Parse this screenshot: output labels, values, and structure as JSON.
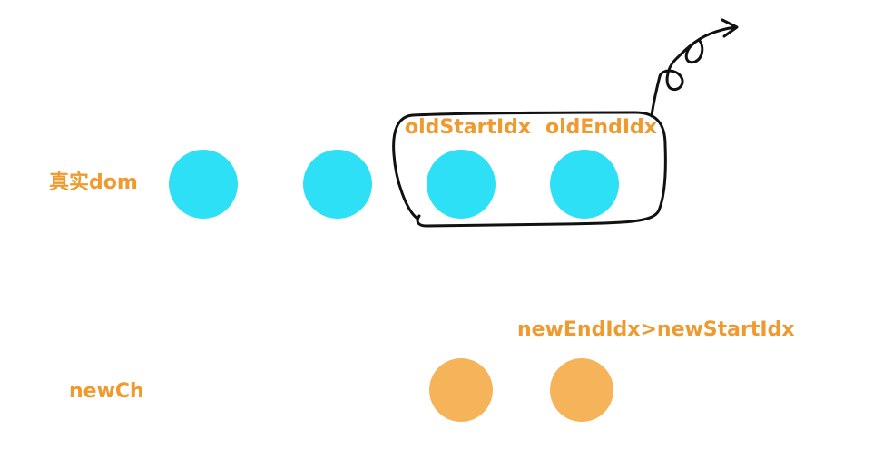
{
  "rows": {
    "real_dom": {
      "label": "真实dom",
      "node_color": "#2ee0f5",
      "node_count": 4
    },
    "new_ch": {
      "label": "newCh",
      "node_color": "#f5b45a",
      "node_count": 2
    }
  },
  "pointers": {
    "old_start": "oldStartIdx",
    "old_end": "oldEndIdx",
    "new_range": "newEndIdx>newStartIdx"
  },
  "colors": {
    "label": "#ef9a2e",
    "stroke": "#111111"
  }
}
